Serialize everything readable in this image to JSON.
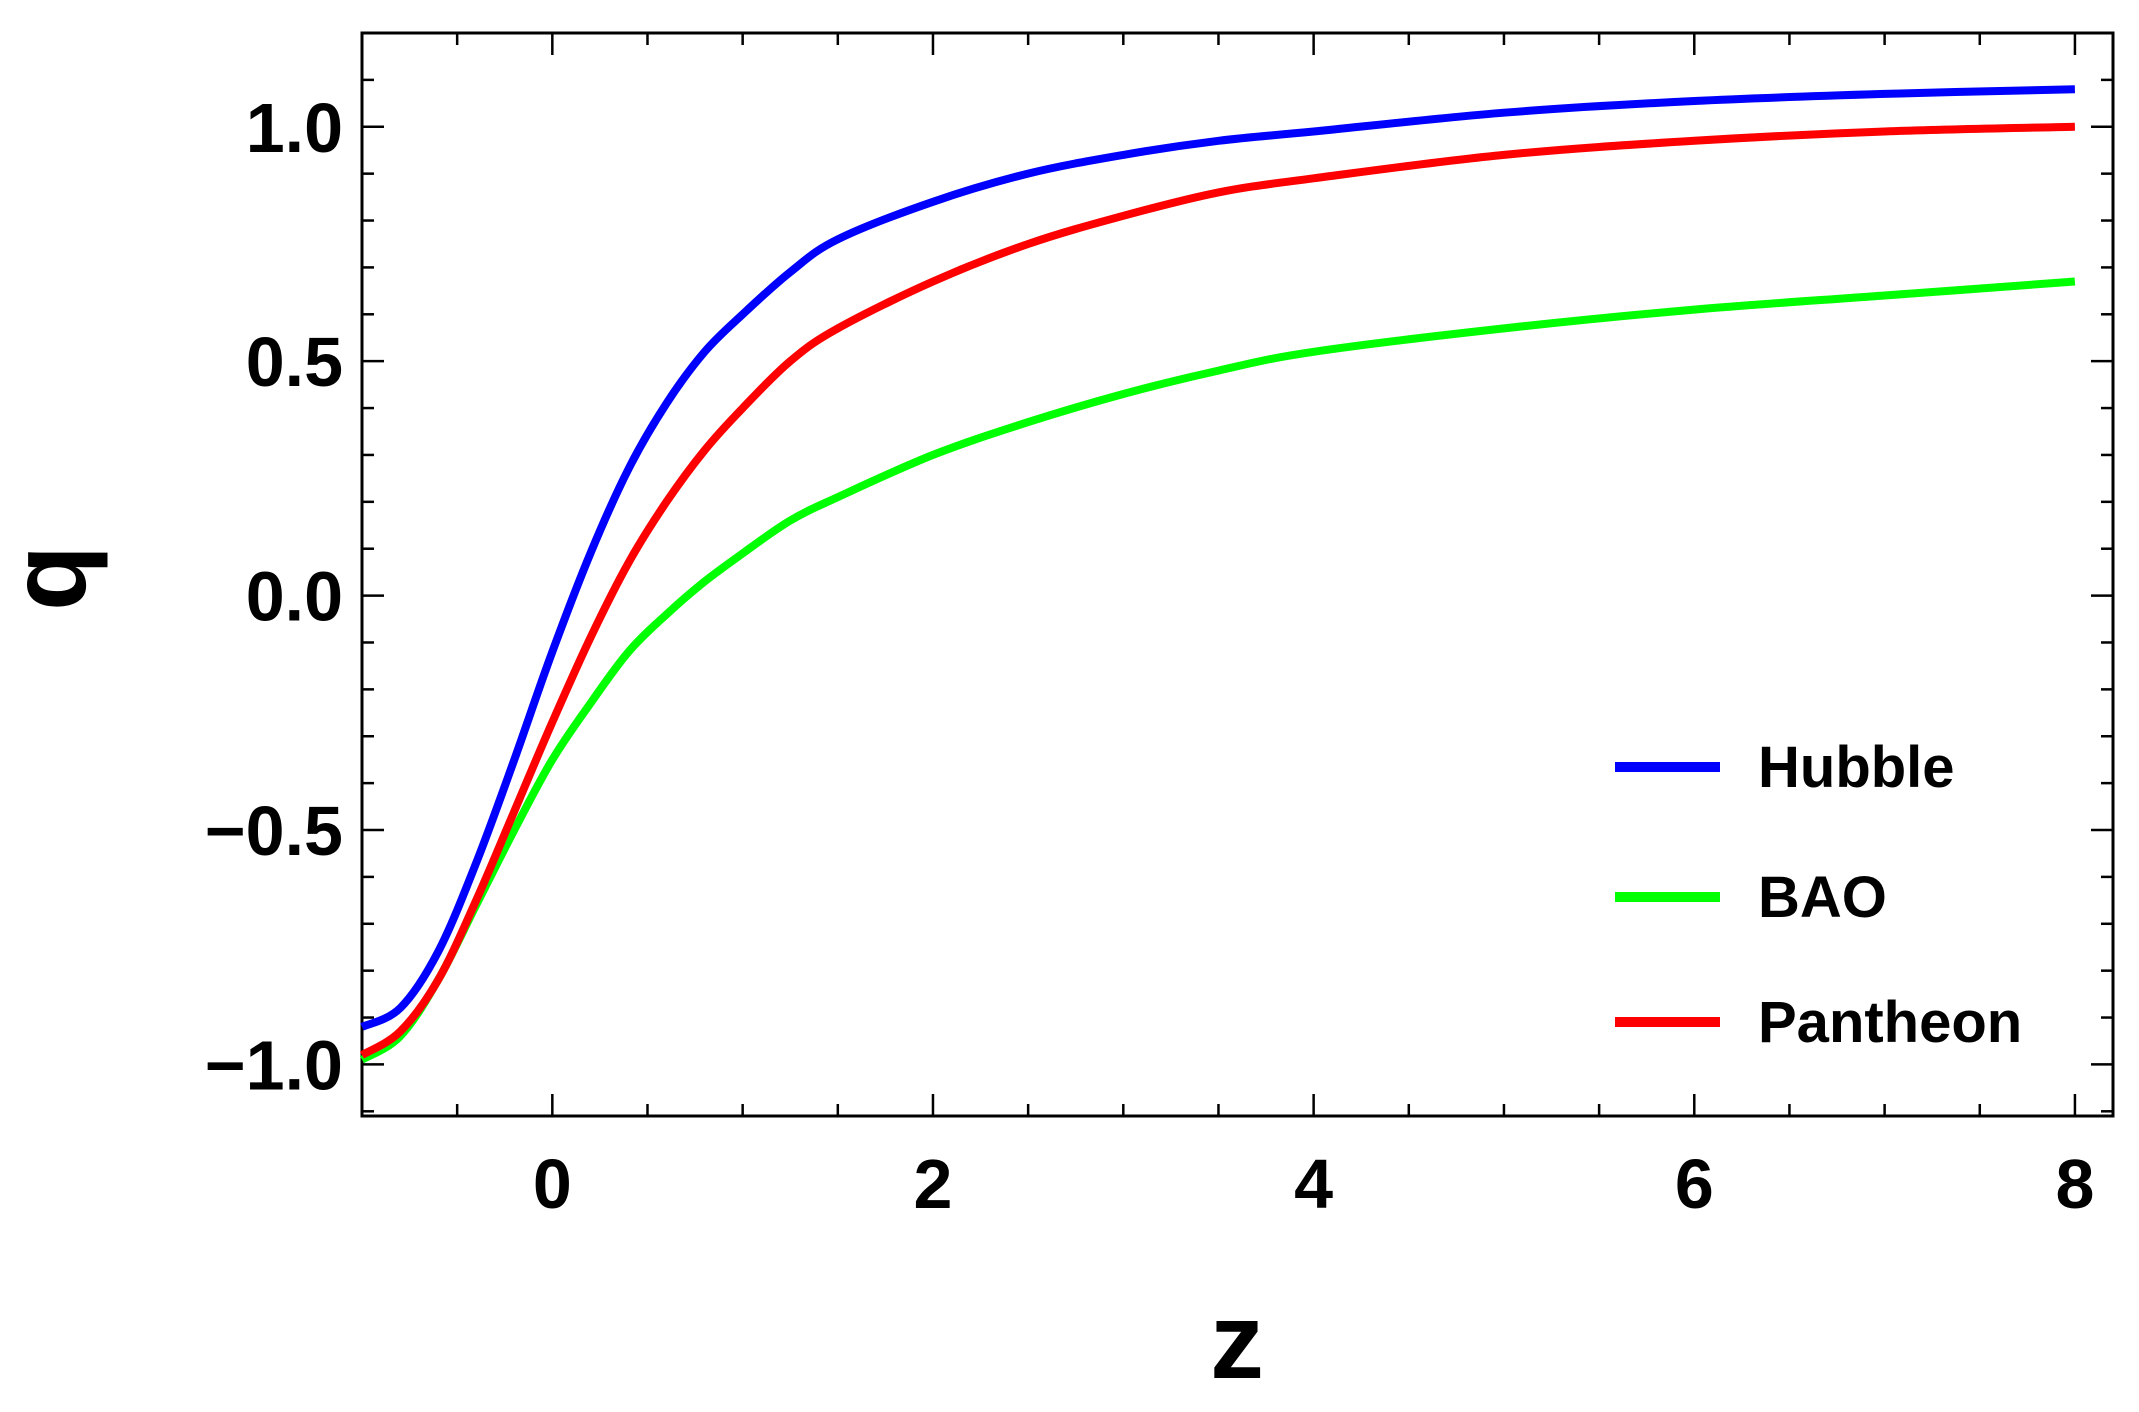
{
  "chart_data": {
    "type": "line",
    "xlabel": "z",
    "ylabel": "q",
    "xlim": [
      -1,
      8.2
    ],
    "ylim": [
      -1.11,
      1.2
    ],
    "x_ticks": [
      0,
      2,
      4,
      6,
      8
    ],
    "x_tick_labels": [
      "0",
      "2",
      "4",
      "6",
      "8"
    ],
    "y_ticks": [
      -1.0,
      -0.5,
      0.0,
      0.5,
      1.0
    ],
    "y_tick_labels": [
      "−1.0",
      "−0.5",
      "0.0",
      "0.5",
      "1.0"
    ],
    "grid": false,
    "legend_position": "bottom-right",
    "x": [
      -1,
      -0.8,
      -0.6,
      -0.4,
      -0.2,
      0,
      0.2,
      0.4,
      0.6,
      0.8,
      1,
      1.25,
      1.5,
      2,
      2.5,
      3,
      3.5,
      4,
      5,
      6,
      7,
      8
    ],
    "series": [
      {
        "name": "Hubble",
        "color": "#0000ff",
        "values": [
          -0.92,
          -0.88,
          -0.76,
          -0.57,
          -0.35,
          -0.12,
          0.09,
          0.27,
          0.41,
          0.52,
          0.6,
          0.69,
          0.76,
          0.84,
          0.9,
          0.94,
          0.97,
          0.99,
          1.03,
          1.055,
          1.07,
          1.08
        ]
      },
      {
        "name": "BAO",
        "color": "#00ff00",
        "values": [
          -0.99,
          -0.94,
          -0.82,
          -0.66,
          -0.5,
          -0.35,
          -0.23,
          -0.12,
          -0.04,
          0.03,
          0.09,
          0.16,
          0.21,
          0.3,
          0.37,
          0.43,
          0.48,
          0.52,
          0.57,
          0.61,
          0.64,
          0.67
        ]
      },
      {
        "name": "Pantheon",
        "color": "#ff0000",
        "values": [
          -0.98,
          -0.93,
          -0.82,
          -0.65,
          -0.46,
          -0.27,
          -0.09,
          0.07,
          0.2,
          0.31,
          0.4,
          0.5,
          0.57,
          0.67,
          0.75,
          0.81,
          0.86,
          0.89,
          0.94,
          0.97,
          0.99,
          1.0
        ]
      }
    ]
  }
}
